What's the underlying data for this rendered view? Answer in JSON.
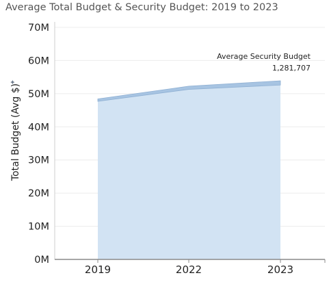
{
  "chart_data": {
    "type": "area",
    "title": "Average Total Budget & Security Budget: 2019 to 2023",
    "xlabel": "",
    "ylabel": "Total Budget (Avg $)",
    "ylabel_marker": "✦",
    "x": [
      "2019",
      "2022",
      "2023"
    ],
    "yticks": [
      "0M",
      "10M",
      "20M",
      "30M",
      "40M",
      "50M",
      "60M",
      "70M"
    ],
    "ylim": [
      0,
      70000000
    ],
    "grid": true,
    "series": [
      {
        "values": [
          47700000,
          51300000,
          52600000
        ],
        "color": "#d2e3f3",
        "stack": "lower"
      },
      {
        "name": "Average Security Budget",
        "values": [
          720000,
          960000,
          1281707
        ],
        "color": "#a7c4e2",
        "stack": "upper"
      }
    ],
    "annotations": [
      {
        "x": "2023",
        "series": "Average Security Budget",
        "title": "Average Security Budget",
        "value": "1,281,707"
      }
    ]
  }
}
